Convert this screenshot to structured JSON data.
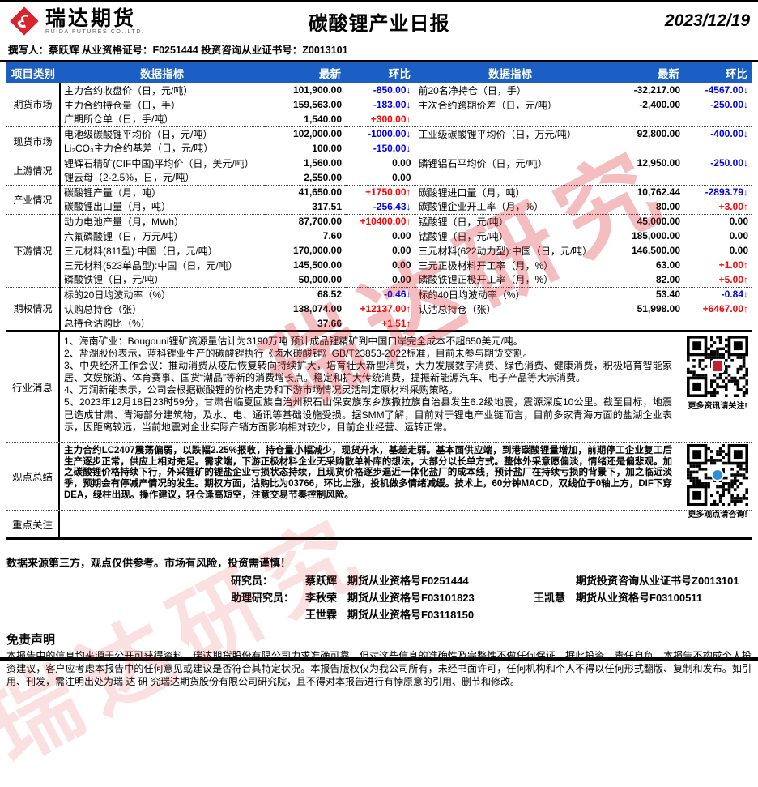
{
  "colors": {
    "header_blue": "#1B5EC4",
    "down_blue": "#0000EE",
    "up_red": "#FF0000",
    "brand_red": "#D9232E"
  },
  "header": {
    "logo_text": "瑞达期货",
    "logo_sub": "RUIDA FUTURES CO.,LTD.",
    "title": "碳酸锂产业日报",
    "date": "2023/12/19"
  },
  "byline": "撰写人：蔡跃辉  从业资格证号：F0251444   投资咨询从业证书号：Z0013101",
  "watermark": "瑞达研究",
  "table": {
    "headers": [
      "项目类别",
      "数据指标",
      "最新",
      "环比",
      "数据指标",
      "最新",
      "环比"
    ],
    "sections": [
      {
        "category": "期货市场",
        "rows": [
          [
            "主力合约收盘价（日，元/吨）",
            "101,900.00",
            "-850.00↓",
            "前20名净持仓（日，手）",
            "-32,217.00",
            "-4567.00↓"
          ],
          [
            "主力合约持仓量（日，手）",
            "159,563.00",
            "-183.00↓",
            "主次合约跨期价差（日，元/吨）",
            "-2,400.00",
            "-250.00↓"
          ],
          [
            "广期所仓单（日，手/吨）",
            "1,540.00",
            "+300.00↑",
            "",
            "",
            ""
          ]
        ]
      },
      {
        "category": "现货市场",
        "rows": [
          [
            "电池级碳酸锂平均价（日，元/吨）",
            "102,000.00",
            "-1000.00↓",
            "工业级碳酸锂平均价（日，万元/吨）",
            "92,800.00",
            "-400.00↓"
          ],
          [
            "Li₂CO₃主力合约基差（日，元/吨）",
            "100.00",
            "-150.00↓",
            "",
            "",
            ""
          ]
        ]
      },
      {
        "category": "上游情况",
        "rows": [
          [
            "锂辉石精矿(CIF中国)平均价（日，美元/吨）",
            "1,560.00",
            "0.00",
            "磷锂铝石平均价（日，元/吨）",
            "12,950.00",
            "-250.00↓"
          ],
          [
            "锂云母（2-2.5%，日，元/吨）",
            "2,550.00",
            "0.00",
            "",
            "",
            ""
          ]
        ]
      },
      {
        "category": "产业情况",
        "rows": [
          [
            "碳酸锂产量（月，吨）",
            "41,650.00",
            "+1750.00↑",
            "碳酸锂进口量（月，吨）",
            "10,762.44",
            "-2893.79↓"
          ],
          [
            "碳酸锂出口量（月，吨）",
            "317.51",
            "-256.43↓",
            "碳酸锂企业开工率（月，%）",
            "80.00",
            "+3.00↑"
          ]
        ]
      },
      {
        "category": "下游情况",
        "rows": [
          [
            "动力电池产量（月，MWh）",
            "87,700.00",
            "+10400.00↑",
            "锰酸锂（日，元/吨）",
            "45,000.00",
            "0.00"
          ],
          [
            "六氟磷酸锂（日，万元/吨）",
            "7.60",
            "0.00",
            "钴酸锂（日，元/吨）",
            "185,000.00",
            "0.00"
          ],
          [
            "三元材料(811型):中国（日，元/吨）",
            "170,000.00",
            "0.00",
            "三元材料(622动力型):中国（日，元/吨）",
            "146,500.00",
            "0.00"
          ],
          [
            "三元材料(523单晶型):中国（日，元/吨）",
            "145,500.00",
            "0.00",
            "三元正极材料开工率（月，%）",
            "63.00",
            "+1.00↑"
          ],
          [
            "磷酸铁锂（日，元/吨）",
            "50,000.00",
            "0.00",
            "磷酸铁锂正极开工率（月，%）",
            "82.00",
            "+5.00↑"
          ]
        ]
      },
      {
        "category": "期权情况",
        "rows": [
          [
            "标的20日均波动率（%）",
            "68.52",
            "-0.46↓",
            "标的40日均波动率（%）",
            "53.40",
            "-0.84↓"
          ],
          [
            "认购总持仓（张）",
            "138,074.00",
            "+12137.00↑",
            "认沽总持仓（张）",
            "51,998.00",
            "+6467.00↑"
          ],
          [
            "总持仓沽购比（%）",
            "37.66",
            "+1.51↑",
            "",
            "",
            ""
          ]
        ]
      }
    ]
  },
  "news": {
    "category": "行业消息",
    "items": [
      "1、海南矿业：Bougouni锂矿资源量估计为3190万吨 预计成品锂精矿到中国口岸完全成本不超650美元/吨。",
      "2、盐湖股份表示，蓝科锂业生产的碳酸锂执行《卤水碳酸锂》GB/T23853-2022标准，目前未参与期货交割。",
      "3、中央经济工作会议：推动消费从疫后恢复转向持续扩大，培育壮大新型消费，大力发展数字消费、绿色消费、健康消费，积极培育智能家居、文娱旅游、体育赛事、国货“潮品”等新的消费增长点。稳定和扩大传统消费，提振新能源汽车、电子产品等大宗消费。",
      "4、万润新能表示，公司会根据碳酸锂的价格走势和下游市场情况灵活制定原材料采购策略。",
      "5、2023年12月18日23时59分，甘肃省临夏回族自治州积石山保安族东乡族撒拉族自治县发生6.2级地震，震源深度10公里。截至目标，地震已造成甘肃、青海部分建筑物，及水、电、通讯等基础设施受损。据SMM了解，目前对于锂电产业链而言，目前多家青海方面的盐湖企业表示，因距离较远，当前地震对企业实际产销方面影响相对较少，目前企业经营、运转正常。"
    ],
    "qr_caption": "更多资讯请关注!"
  },
  "summary": {
    "category": "观点总结",
    "text": "主力合约LC2407震荡偏弱，以跌幅2.25%报收，持仓量小幅减少，现货升水，基差走弱。基本面供应端，到港碳酸锂量增加，前期停工企业复工后生产逐步正常，供应上相对充足。需求端，下游正极材料企业无采购散单补库的想法，大部分以长单方式。整体外采意愿偏淡，情绪还是偏悲观。加之碳酸锂价格持续下行，外采锂矿的锂盐企业亏损状态持续，且现货价格逐步逼近一体化盐厂的成本线，预计盐厂在持续亏损的背景下，加之临近淡季，预期会有停减产情况的发生。期权方面，沽购比为03766，环比上涨，投机做多情绪减缓。技术上，60分钟MACD，双线位于0轴上方，DIF下穿DEA，绿柱出现。操作建议，轻仓逢高短空，注意交易节奏控制风险。",
    "qr_caption": "更多观点请咨询!"
  },
  "focus": {
    "category": "重点关注",
    "text": ""
  },
  "footer": {
    "risk_note": "数据来源第三方，观点仅供参考。市场有风险，投资需谨慎！",
    "researchers": [
      {
        "role": "研究员：",
        "name": "蔡跃辉",
        "cert": "期货从业资格号F0251444",
        "name2": "",
        "cert2": "期货投资咨询从业证书号Z0013101"
      },
      {
        "role": "助理研究员：",
        "name": "李秋荣",
        "cert": "期货从业资格号F03101823",
        "name2": "王凯慧",
        "cert2": "期货从业资格号F03100511"
      },
      {
        "role": "",
        "name": "王世霖",
        "cert": "期货从业资格号F03118150",
        "name2": "",
        "cert2": ""
      }
    ],
    "disclaimer_title": "免责声明",
    "disclaimer_text": "本报告中的信息均来源于公开可获得资料，瑞达期货股份有限公司力求准确可靠，但对这些信息的准确性及完整性不做任何保证，据此投资，责任自负。本报告不构成个人投资建议，客户应考虑本报告中的任何意见或建议是否符合其特定状况。本报告版权仅为我公司所有，未经书面许可，任何机构和个人不得以任何形式翻版、复制和发布。如引用、刊发，需注明出处为瑞 达 研 究瑞达期货股份有限公司研究院，且不得对本报告进行有悖原意的引用、删节和修改。"
  }
}
